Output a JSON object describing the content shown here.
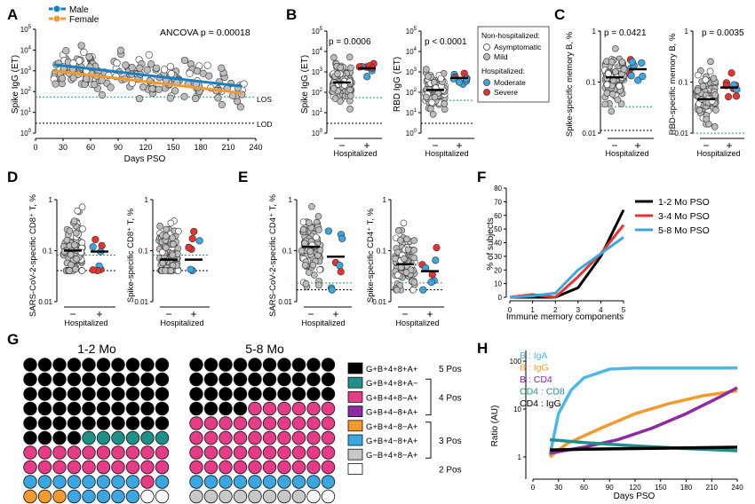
{
  "panels": {
    "A": {
      "letter": "A",
      "ylabel": "Spike IgG (ET)",
      "xlabel": "Days PSO",
      "annotation": "ANCOVA p = 0.00018",
      "legend": [
        "Male",
        "Female"
      ],
      "los_label": "LOS",
      "lod_label": "LOD"
    },
    "B": {
      "letter": "B",
      "spike_ylabel": "Spike IgG (ET)",
      "rbd_ylabel": "RBD IgG (ET)",
      "spike_p": "p = 0.0006",
      "rbd_p": "p < 0.0001",
      "xlabel": "Hospitalized"
    },
    "C": {
      "letter": "C",
      "spike_ylabel": "Spike-specific memory B, %",
      "rbd_ylabel": "RBD-specific memory B, %",
      "spike_p": "p = 0.0421",
      "rbd_p": "p = 0.0035",
      "xlabel": "Hospitalized"
    },
    "D": {
      "letter": "D",
      "left_ylabel": "SARS-CoV-2-specific CD8⁺ T, %",
      "right_ylabel": "Spike-specific CD8⁺ T, %",
      "xlabel": "Hospitalized"
    },
    "E": {
      "letter": "E",
      "left_ylabel": "SARS-CoV-2-specific CD4⁺ T, %",
      "right_ylabel": "Spike-specific CD4⁺ T, %",
      "xlabel": "Hospitalized"
    },
    "F": {
      "letter": "F",
      "ylabel": "% of subjects",
      "xlabel": "Immune memory components"
    },
    "G": {
      "letter": "G",
      "left_title": "1-2 Mo",
      "right_title": "5-8 Mo"
    },
    "H": {
      "letter": "H",
      "ylabel": "Ratio (AU)",
      "xlabel": "Days PSO"
    }
  },
  "hosp_legend": {
    "title1": "Non-hospitalized:",
    "items1": [
      "Asymptomatic",
      "Mild"
    ],
    "title2": "Hospitalized:",
    "items2": [
      "Moderate",
      "Severe"
    ]
  },
  "ticks": {
    "minus": "−",
    "plus": "+"
  },
  "g_legend": [
    {
      "label": "G+B+4+8+A+",
      "color": "#000000"
    },
    {
      "label": "G+B+4+8+A−",
      "color": "#1f8f8a"
    },
    {
      "label": "G+B+4+8−A+",
      "color": "#e63b86"
    },
    {
      "label": "G+B+4−8+A+",
      "color": "#8e2aa0"
    },
    {
      "label": "G+B+4−8−A+",
      "color": "#f39a2e"
    },
    {
      "label": "G+B+4−8+A+",
      "color": "#3ba7e0"
    },
    {
      "label": "G−B+4+8−A+",
      "color": "#c8c8c8"
    },
    {
      "label": "",
      "color": "#ffffff"
    }
  ],
  "g_groups": [
    "5 Pos",
    "4 Pos",
    "3 Pos",
    "2 Pos"
  ],
  "colors": {
    "male": "#1a7fc1",
    "female": "#f39a2e",
    "moderate": "#3ba7e0",
    "severe": "#e8322f",
    "gray": "#bdbdbd",
    "los": "#1aa34a"
  },
  "chart_data": [
    {
      "panel": "A",
      "type": "scatter",
      "x_ticks": [
        0,
        30,
        60,
        90,
        120,
        150,
        180,
        210,
        240
      ],
      "y_ticks": [
        "10^0",
        "10^1",
        "10^2",
        "10^3",
        "10^4",
        "10^5"
      ],
      "xlim": [
        0,
        240
      ],
      "ylim": [
        1,
        100000
      ],
      "yscale": "log",
      "series": [
        {
          "name": "Male",
          "fit": [
            [
              20,
              2000
            ],
            [
              225,
              180
            ]
          ]
        },
        {
          "name": "Female",
          "fit": [
            [
              20,
              1000
            ],
            [
              225,
              85
            ]
          ]
        }
      ],
      "reference_lines": {
        "LOS": 55,
        "LOD": 3
      }
    },
    {
      "panel": "B-left",
      "type": "scatter",
      "categories": [
        "−",
        "+"
      ],
      "y_ticks": [
        "10^0",
        "10^1",
        "10^2",
        "10^3",
        "10^4",
        "10^5"
      ],
      "ylim": [
        1,
        100000
      ],
      "yscale": "log",
      "medians": [
        300,
        1500
      ]
    },
    {
      "panel": "B-right",
      "type": "scatter",
      "categories": [
        "−",
        "+"
      ],
      "y_ticks": [
        "10^0",
        "10^1",
        "10^2",
        "10^3",
        "10^4",
        "10^5"
      ],
      "ylim": [
        1,
        100000
      ],
      "yscale": "log",
      "medians": [
        130,
        500
      ]
    },
    {
      "panel": "C-left",
      "type": "scatter",
      "categories": [
        "−",
        "+"
      ],
      "y_ticks": [
        "0.01",
        "0.1",
        "1"
      ],
      "yscale": "log",
      "medians": [
        0.11,
        0.19
      ]
    },
    {
      "panel": "C-right",
      "type": "scatter",
      "categories": [
        "−",
        "+"
      ],
      "y_ticks": [
        "0.01",
        "0.1",
        "1"
      ],
      "yscale": "log",
      "medians": [
        0.025,
        0.055
      ]
    },
    {
      "panel": "D-left",
      "type": "scatter",
      "categories": [
        "−",
        "+"
      ],
      "y_ticks": [
        "0.01",
        "0.1",
        "1"
      ],
      "yscale": "log",
      "medians": [
        0.16,
        0.15
      ]
    },
    {
      "panel": "D-right",
      "type": "scatter",
      "categories": [
        "−",
        "+"
      ],
      "y_ticks": [
        "0.01",
        "0.1",
        "1"
      ],
      "yscale": "log",
      "medians": [
        0.09,
        0.09
      ]
    },
    {
      "panel": "E-left",
      "type": "scatter",
      "categories": [
        "−",
        "+"
      ],
      "y_ticks": [
        "0.01",
        "0.1",
        "1"
      ],
      "yscale": "log",
      "medians": [
        0.25,
        0.14
      ]
    },
    {
      "panel": "E-right",
      "type": "scatter",
      "categories": [
        "−",
        "+"
      ],
      "y_ticks": [
        "0.01",
        "0.1",
        "1"
      ],
      "yscale": "log",
      "medians": [
        0.09,
        0.06
      ]
    },
    {
      "panel": "F",
      "type": "line",
      "x": [
        0,
        1,
        2,
        3,
        4,
        5
      ],
      "y_ticks": [
        0,
        10,
        20,
        30,
        40,
        50,
        60,
        70,
        80
      ],
      "ylim": [
        0,
        80
      ],
      "series": [
        {
          "name": "1-2 Mo PSO",
          "color": "#000000",
          "values": [
            0,
            0,
            0,
            7,
            30,
            64
          ]
        },
        {
          "name": "3-4 Mo PSO",
          "color": "#e8322f",
          "values": [
            0,
            2,
            0,
            15,
            32,
            53
          ]
        },
        {
          "name": "5-8 Mo PSO",
          "color": "#3ba7e0",
          "values": [
            0,
            1,
            3,
            20,
            32,
            44
          ]
        }
      ]
    },
    {
      "panel": "G",
      "type": "table",
      "grids": [
        {
          "name": "1-2 Mo",
          "cells": [
            "0000000000",
            "0000000000",
            "0000000000",
            "0000000000",
            "0000000000",
            "0000111111",
            "2222222222",
            "2222222222",
            "5555555525",
            "4445555577"
          ]
        },
        {
          "name": "5-8 Mo",
          "cells": [
            "0000000000",
            "0000000000",
            "0000000000",
            "0000222222",
            "2222222222",
            "2222222222",
            "2222222222",
            "2222222222",
            "5555555555",
            "6666666677"
          ]
        }
      ]
    },
    {
      "panel": "H",
      "type": "line",
      "x_ticks": [
        0,
        30,
        60,
        90,
        120,
        150,
        180,
        210,
        240
      ],
      "y_ticks": [
        "1",
        "10",
        "100"
      ],
      "xlim": [
        0,
        240
      ],
      "yscale": "log",
      "series": [
        {
          "name": "B : IgA",
          "color": "#4db8e8",
          "x": [
            20,
            30,
            45,
            60,
            90,
            120,
            240
          ],
          "values": [
            1.1,
            8,
            25,
            45,
            68,
            72,
            72
          ]
        },
        {
          "name": "B : IgG",
          "color": "#f39a2e",
          "x": [
            20,
            40,
            80,
            120,
            160,
            200,
            240
          ],
          "values": [
            1.0,
            1.9,
            4,
            8,
            13,
            19,
            24
          ]
        },
        {
          "name": "B : CD4",
          "color": "#8e2aa0",
          "x": [
            20,
            60,
            100,
            140,
            180,
            220,
            240
          ],
          "values": [
            1.2,
            1.6,
            2.3,
            4,
            8,
            18,
            28
          ]
        },
        {
          "name": "CD4 : CD8",
          "color": "#1f8f8a",
          "x": [
            20,
            60,
            120,
            180,
            240
          ],
          "values": [
            2.3,
            2.0,
            1.7,
            1.5,
            1.35
          ]
        },
        {
          "name": "CD4 : IgG",
          "color": "#000000",
          "x": [
            20,
            60,
            120,
            180,
            240
          ],
          "values": [
            1.4,
            1.45,
            1.5,
            1.55,
            1.6
          ]
        }
      ]
    }
  ]
}
